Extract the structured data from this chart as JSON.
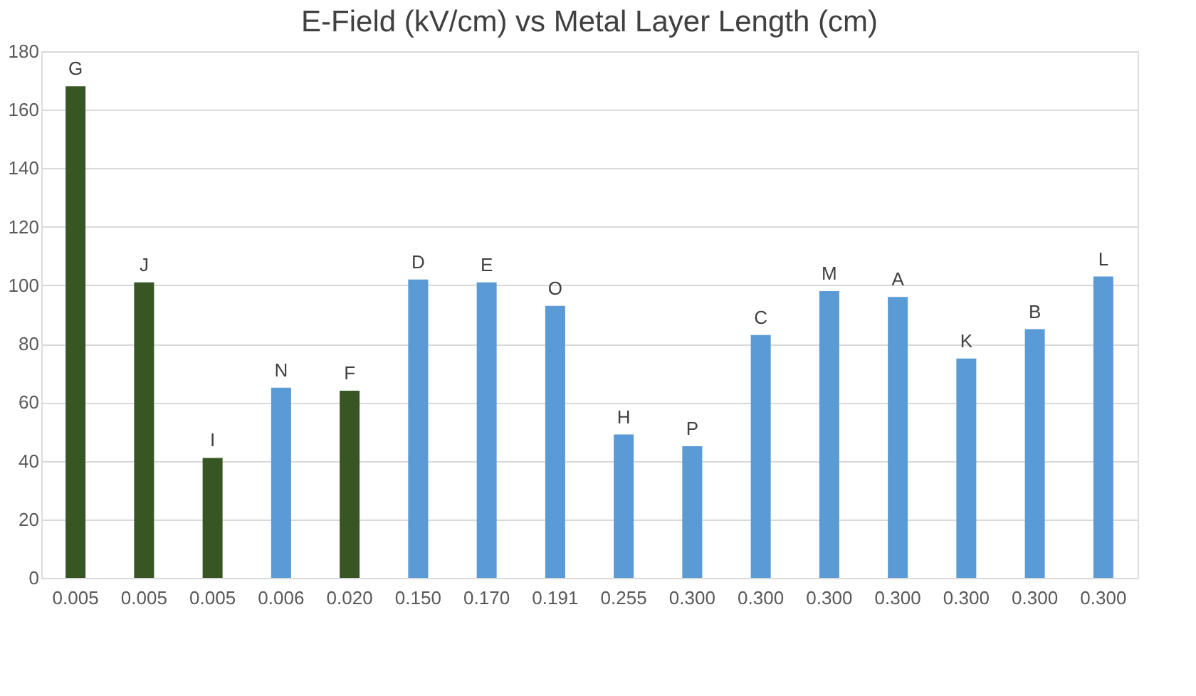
{
  "chart_data": {
    "type": "bar",
    "title": "E-Field (kV/cm) vs Metal Layer Length (cm)",
    "categories": [
      "0.005",
      "0.005",
      "0.005",
      "0.006",
      "0.020",
      "0.150",
      "0.170",
      "0.191",
      "0.255",
      "0.300",
      "0.300",
      "0.300",
      "0.300",
      "0.300",
      "0.300",
      "0.300"
    ],
    "values": [
      168,
      101,
      41,
      65,
      64,
      102,
      101,
      93,
      49,
      45,
      83,
      98,
      96,
      75,
      85,
      103
    ],
    "colors": [
      "#375623",
      "#375623",
      "#375623",
      "#5b9bd5",
      "#375623",
      "#5b9bd5",
      "#5b9bd5",
      "#5b9bd5",
      "#5b9bd5",
      "#5b9bd5",
      "#5b9bd5",
      "#5b9bd5",
      "#5b9bd5",
      "#5b9bd5",
      "#5b9bd5",
      "#5b9bd5"
    ],
    "value_labels": [
      "G",
      "J",
      "I",
      "N",
      "F",
      "D",
      "E",
      "O",
      "H",
      "P",
      "C",
      "M",
      "A",
      "K",
      "B",
      "L"
    ],
    "ylim": [
      0,
      180
    ],
    "yticks": [
      0,
      20,
      40,
      60,
      80,
      100,
      120,
      140,
      160,
      180
    ],
    "grid": "y"
  }
}
